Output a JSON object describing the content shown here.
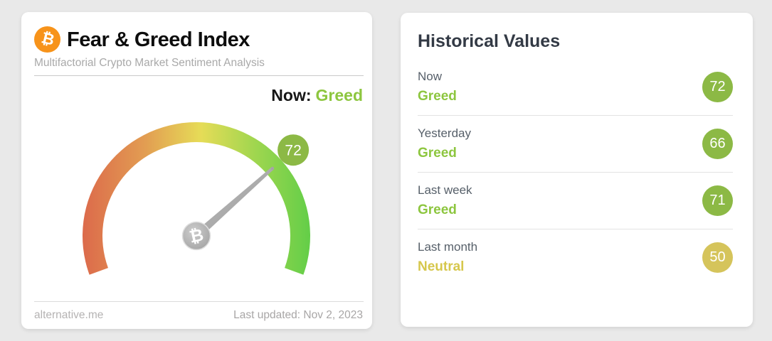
{
  "page": {
    "background": "#e9e9e9"
  },
  "brand": {
    "bitcoin_symbol": "₿",
    "bitcoin_orange": "#f7931a"
  },
  "left_card": {
    "title": "Fear & Greed Index",
    "subtitle": "Multifactorial Crypto Market Sentiment Analysis",
    "now_prefix": "Now:",
    "now_sentiment": "Greed",
    "footer": {
      "site": "alternative.me",
      "last_updated": "Last updated: Nov 2, 2023"
    }
  },
  "gauge": {
    "value": 72,
    "min": 0,
    "max": 100,
    "badge_label": "72",
    "badge_color": "#8cb945",
    "needle_color": "#ababab",
    "hub_symbol": "₿",
    "arc_gradient": [
      "#dc6a4b",
      "#e29c52",
      "#e6dc57",
      "#9fd64f",
      "#63ce48"
    ]
  },
  "right_card": {
    "title": "Historical Values",
    "rows": [
      {
        "label": "Now",
        "sentiment": "Greed",
        "value": "72",
        "tone": "green"
      },
      {
        "label": "Yesterday",
        "sentiment": "Greed",
        "value": "66",
        "tone": "green"
      },
      {
        "label": "Last week",
        "sentiment": "Greed",
        "value": "71",
        "tone": "green"
      },
      {
        "label": "Last month",
        "sentiment": "Neutral",
        "value": "50",
        "tone": "yellow"
      }
    ]
  },
  "colors": {
    "green_text": "#8dc63f",
    "green_badge": "#8cb945",
    "yellow_text": "#d6c74c",
    "yellow_badge": "#d5c45b"
  },
  "chart_data": {
    "type": "gauge",
    "title": "Fear & Greed Index",
    "value": 72,
    "value_classification": "Greed",
    "range": [
      0,
      100
    ],
    "color_scale": "red (fear, low) through yellow to green (greed, high)",
    "historical": [
      {
        "period": "Now",
        "classification": "Greed",
        "value": 72
      },
      {
        "period": "Yesterday",
        "classification": "Greed",
        "value": 66
      },
      {
        "period": "Last week",
        "classification": "Greed",
        "value": 71
      },
      {
        "period": "Last month",
        "classification": "Neutral",
        "value": 50
      }
    ]
  }
}
